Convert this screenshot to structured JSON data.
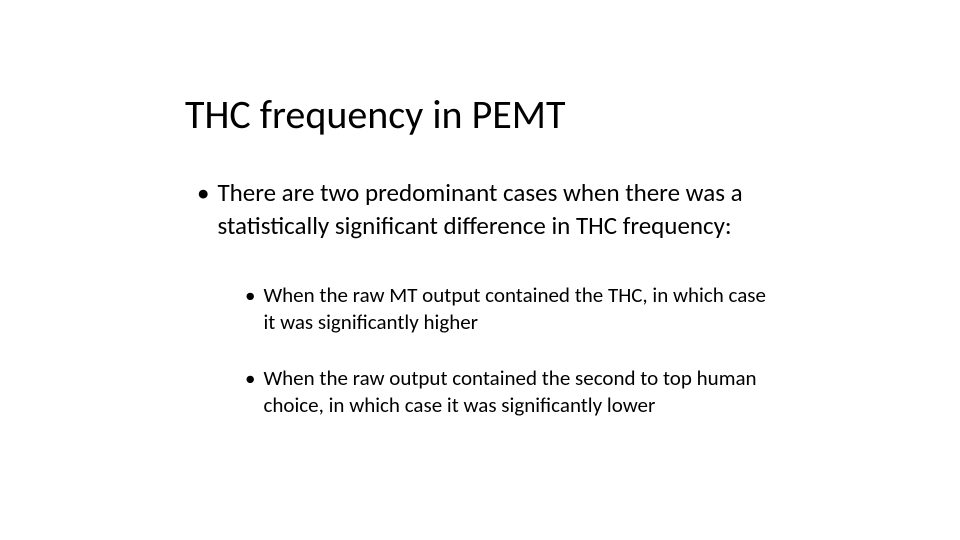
{
  "slide": {
    "title": "THC frequency in PEMT",
    "bullets": [
      {
        "level": 1,
        "text": "There are two predominant cases when there was a statistically significant difference in THC frequency:"
      },
      {
        "level": 2,
        "text": "When the raw MT output contained the THC, in which case it was significantly higher"
      },
      {
        "level": 2,
        "text": "When the raw output contained the second to top human choice, in which case it was significantly lower"
      }
    ],
    "colors": {
      "background": "#ffffff",
      "text": "#000000"
    },
    "typography": {
      "title_fontsize": 40,
      "title_weight": 400,
      "bullet1_fontsize": 25,
      "bullet2_fontsize": 21,
      "font_family": "Calibri"
    }
  }
}
